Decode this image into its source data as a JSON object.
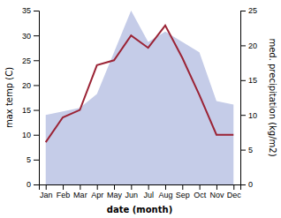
{
  "chart_data": {
    "type": "line",
    "categories": [
      "Jan",
      "Feb",
      "Mar",
      "Apr",
      "May",
      "Jun",
      "Jul",
      "Aug",
      "Sep",
      "Oct",
      "Nov",
      "Dec"
    ],
    "series": [
      {
        "type": "area",
        "axis": "y2",
        "color": "#c5cce8",
        "values": [
          10.0,
          10.5,
          11.0,
          13.0,
          19.0,
          25.0,
          20.5,
          22.0,
          20.5,
          19.0,
          12.0,
          11.5
        ]
      },
      {
        "type": "line",
        "color": "#9b2335",
        "values": [
          8.5,
          13.5,
          15.0,
          24.0,
          25.0,
          30.0,
          27.5,
          32.0,
          25.5,
          18.0,
          10.0,
          10.0
        ]
      }
    ],
    "xlabel": "date (month)",
    "ylabel": "max temp (C)",
    "y2label": "med. precipitation (kg/m2)",
    "ylim": [
      0,
      35
    ],
    "yticks": [
      0,
      5,
      10,
      15,
      20,
      25,
      30,
      35
    ],
    "y2lim": [
      0,
      25
    ],
    "y2ticks": [
      0,
      5,
      10,
      15,
      20,
      25
    ],
    "grid": false
  }
}
